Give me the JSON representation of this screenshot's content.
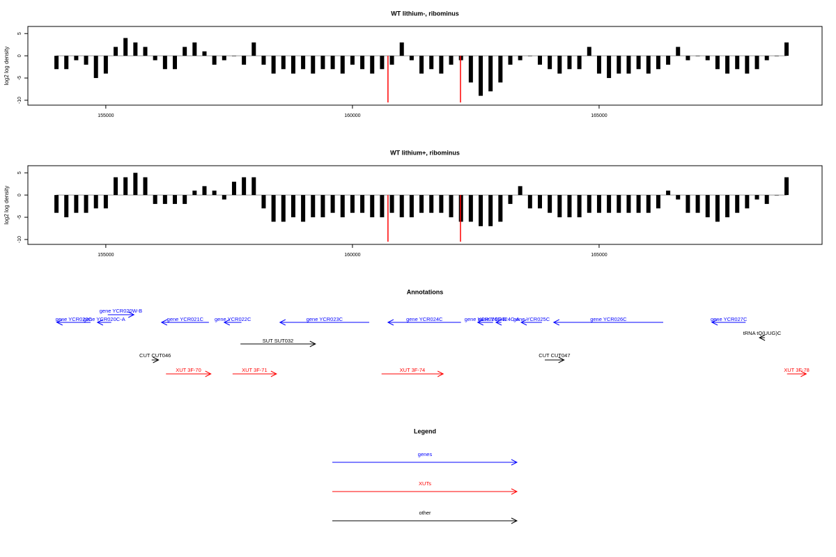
{
  "chart_data": [
    {
      "type": "bar",
      "title": "WT lithium-, ribominus",
      "ylabel": "log2 log density",
      "xlim": [
        153420,
        169520
      ],
      "ylim": [
        -11.1,
        6.6
      ],
      "xticks": [
        155000,
        160000,
        165000
      ],
      "yticks": [
        -10,
        -5,
        0,
        5
      ],
      "series": [
        {
          "color": "#000000",
          "x": [
            154000,
            154200,
            154400,
            154600,
            154800,
            155000,
            155200,
            155400,
            155600,
            155800,
            156000,
            156200,
            156400,
            156600,
            156800,
            157000,
            157200,
            157400,
            157600,
            157800,
            158000,
            158200,
            158400,
            158600,
            158800,
            159000,
            159200,
            159400,
            159600,
            159800,
            160000,
            160200,
            160400,
            160600,
            160800,
            161000,
            161200,
            161400,
            161600,
            161800,
            162000,
            162200,
            162400,
            162600,
            162800,
            163000,
            163200,
            163400,
            163600,
            163800,
            164000,
            164200,
            164400,
            164600,
            164800,
            165000,
            165200,
            165400,
            165600,
            165800,
            166000,
            166200,
            166400,
            166600,
            166800,
            167000,
            167200,
            167400,
            167600,
            167800,
            168000,
            168200,
            168400,
            168600,
            168800
          ],
          "values": [
            -3,
            -3,
            -1,
            -2,
            -5,
            -4,
            2,
            4,
            3,
            2,
            -1,
            -3,
            -3,
            2,
            3,
            1,
            -2,
            -1,
            0,
            -2,
            3,
            -2,
            -4,
            -3,
            -4,
            -3,
            -4,
            -3,
            -3,
            -4,
            -2,
            -3,
            -4,
            -3,
            -2,
            3,
            -1,
            -4,
            -3,
            -4,
            -2,
            -1,
            -6,
            -9,
            -8,
            -6,
            -2,
            -1,
            0,
            -2,
            -3,
            -4,
            -3,
            -3,
            2,
            -4,
            -5,
            -4,
            -4,
            -3,
            -4,
            -3,
            -2,
            2,
            -1,
            0,
            -1,
            -3,
            -4,
            -3,
            -4,
            -3,
            -1,
            0,
            3
          ]
        },
        {
          "color": "#ff0000",
          "x": [
            160720,
            162190
          ],
          "values": [
            -10.5,
            -10.5
          ]
        }
      ]
    },
    {
      "type": "bar",
      "title": "WT lithium+, ribominus",
      "ylabel": "log2 log density",
      "xlim": [
        153420,
        169520
      ],
      "ylim": [
        -11.1,
        6.6
      ],
      "xticks": [
        155000,
        160000,
        165000
      ],
      "yticks": [
        -10,
        -5,
        0,
        5
      ],
      "series": [
        {
          "color": "#000000",
          "x": [
            154000,
            154200,
            154400,
            154600,
            154800,
            155000,
            155200,
            155400,
            155600,
            155800,
            156000,
            156200,
            156400,
            156600,
            156800,
            157000,
            157200,
            157400,
            157600,
            157800,
            158000,
            158200,
            158400,
            158600,
            158800,
            159000,
            159200,
            159400,
            159600,
            159800,
            160000,
            160200,
            160400,
            160600,
            160800,
            161000,
            161200,
            161400,
            161600,
            161800,
            162000,
            162200,
            162400,
            162600,
            162800,
            163000,
            163200,
            163400,
            163600,
            163800,
            164000,
            164200,
            164400,
            164600,
            164800,
            165000,
            165200,
            165400,
            165600,
            165800,
            166000,
            166200,
            166400,
            166600,
            166800,
            167000,
            167200,
            167400,
            167600,
            167800,
            168000,
            168200,
            168400,
            168600,
            168800
          ],
          "values": [
            -4,
            -5,
            -4,
            -4,
            -3,
            -3,
            4,
            4,
            5,
            4,
            -2,
            -2,
            -2,
            -2,
            1,
            2,
            1,
            -1,
            3,
            4,
            4,
            -3,
            -6,
            -6,
            -5,
            -6,
            -5,
            -5,
            -4,
            -5,
            -4,
            -4,
            -5,
            -5,
            -4,
            -5,
            -5,
            -4,
            -4,
            -4,
            -5,
            -6,
            -6,
            -7,
            -7,
            -6,
            -2,
            2,
            -3,
            -3,
            -4,
            -5,
            -5,
            -5,
            -4,
            -4,
            -4,
            -4,
            -4,
            -4,
            -4,
            -3,
            1,
            -1,
            -4,
            -4,
            -5,
            -6,
            -5,
            -4,
            -3,
            -1,
            -2,
            0,
            4
          ]
        },
        {
          "color": "#ff0000",
          "x": [
            160720,
            162190
          ],
          "values": [
            -10.5,
            -10.5
          ]
        }
      ]
    }
  ],
  "annotations": {
    "title": "Annotations",
    "features": [
      {
        "label": "gene YCR020C",
        "start": 154010,
        "end": 154690,
        "strand": "-",
        "color": "#0000ff"
      },
      {
        "label": "gene YCR020C-A",
        "start": 154830,
        "end": 155110,
        "strand": "-",
        "color": "#0000ff"
      },
      {
        "label": "gene YCR020W-B",
        "start": 155040,
        "end": 155570,
        "strand": "+",
        "color": "#0000ff"
      },
      {
        "label": "gene YCR021C",
        "start": 156130,
        "end": 157090,
        "strand": "-",
        "color": "#0000ff"
      },
      {
        "label": "gene YCR022C",
        "start": 157400,
        "end": 157750,
        "strand": "-",
        "color": "#0000ff"
      },
      {
        "label": "gene YCR023C",
        "start": 158530,
        "end": 160340,
        "strand": "-",
        "color": "#0000ff"
      },
      {
        "label": "gene YCR024C",
        "start": 160720,
        "end": 162200,
        "strand": "-",
        "color": "#0000ff"
      },
      {
        "label": "gene YCR024C-B",
        "start": 162540,
        "end": 162850,
        "strand": "-",
        "color": "#0000ff"
      },
      {
        "label": "gene YCR024C-A",
        "start": 162910,
        "end": 163020,
        "strand": "-",
        "color": "#0000ff"
      },
      {
        "label": "gene YCR025C",
        "start": 163420,
        "end": 163840,
        "strand": "-",
        "color": "#0000ff"
      },
      {
        "label": "gene YCR026C",
        "start": 164080,
        "end": 166300,
        "strand": "-",
        "color": "#0000ff"
      },
      {
        "label": "gene YCR027C",
        "start": 167290,
        "end": 167970,
        "strand": "-",
        "color": "#0000ff"
      },
      {
        "label": "tRNA tQ(UUG)C",
        "start": 168250,
        "end": 168360,
        "strand": "-",
        "color": "#000000"
      },
      {
        "label": "SUT SUT032",
        "start": 157730,
        "end": 159250,
        "strand": "+",
        "color": "#000000"
      },
      {
        "label": "CUT CUT046",
        "start": 155930,
        "end": 156070,
        "strand": "+",
        "color": "#000000"
      },
      {
        "label": "CUT CUT047",
        "start": 163900,
        "end": 164290,
        "strand": "+",
        "color": "#000000"
      },
      {
        "label": "XUT 3F-70",
        "start": 156220,
        "end": 157130,
        "strand": "+",
        "color": "#ff0000"
      },
      {
        "label": "XUT 3F-71",
        "start": 157570,
        "end": 158460,
        "strand": "+",
        "color": "#ff0000"
      },
      {
        "label": "XUT 3F-74",
        "start": 160590,
        "end": 161840,
        "strand": "+",
        "color": "#ff0000"
      },
      {
        "label": "XUT 3F-78",
        "start": 168810,
        "end": 169200,
        "strand": "+",
        "color": "#ff0000"
      }
    ]
  },
  "legend": {
    "title": "Legend",
    "items": [
      {
        "label": "genes",
        "color": "#0000ff"
      },
      {
        "label": "XUTs",
        "color": "#ff0000"
      },
      {
        "label": "other",
        "color": "#000000"
      }
    ]
  }
}
